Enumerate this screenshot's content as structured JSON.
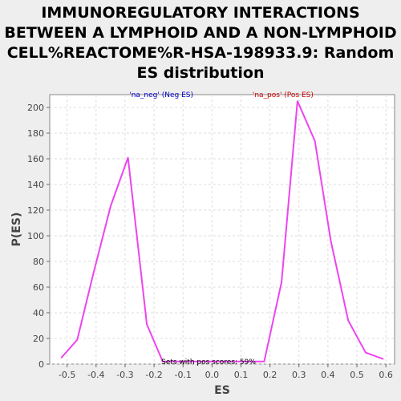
{
  "chart_data": {
    "type": "line",
    "title_lines": [
      "IMMUNOREGULATORY INTERACTIONS",
      "BETWEEN A LYMPHOID AND A NON-LYMPHOID",
      "CELL%REACTOME%R-HSA-198933.9: Random",
      "ES distribution"
    ],
    "xlabel": "ES",
    "ylabel": "P(ES)",
    "xlim": [
      -0.56,
      0.63
    ],
    "ylim": [
      0,
      210
    ],
    "xticks": [
      -0.5,
      -0.4,
      -0.3,
      -0.2,
      -0.1,
      0.0,
      0.1,
      0.2,
      0.3,
      0.4,
      0.5,
      0.6
    ],
    "xtick_labels": [
      "-0.5",
      "-0.4",
      "-0.3",
      "-0.2",
      "-0.1",
      "0.0",
      "0.1",
      "0.2",
      "0.3",
      "0.4",
      "0.5",
      "0.6"
    ],
    "yticks": [
      0,
      20,
      40,
      60,
      80,
      100,
      120,
      140,
      160,
      180,
      200
    ],
    "grid": true,
    "series": [
      {
        "color": "#ee44ee",
        "x": [
          -0.52,
          -0.465,
          -0.41,
          -0.35,
          -0.29,
          -0.225,
          -0.17,
          0.18,
          0.24,
          0.295,
          0.355,
          0.41,
          0.47,
          0.53,
          0.59
        ],
        "y": [
          5,
          19,
          70,
          123,
          161,
          31,
          2,
          2,
          64,
          205,
          174,
          96,
          34,
          9,
          4
        ]
      }
    ],
    "annotations": [
      {
        "text": "'na_neg' (Neg ES)",
        "x": -0.175,
        "y": 210,
        "color": "#0000cc",
        "anchor": "middle"
      },
      {
        "text": "'na_pos' (Pos ES)",
        "x": 0.245,
        "y": 210,
        "color": "#cc0000",
        "anchor": "middle"
      },
      {
        "text": "Sets with pos scores: 59%",
        "x": -0.175,
        "y": 2,
        "color": "#000000",
        "anchor": "start"
      }
    ]
  }
}
